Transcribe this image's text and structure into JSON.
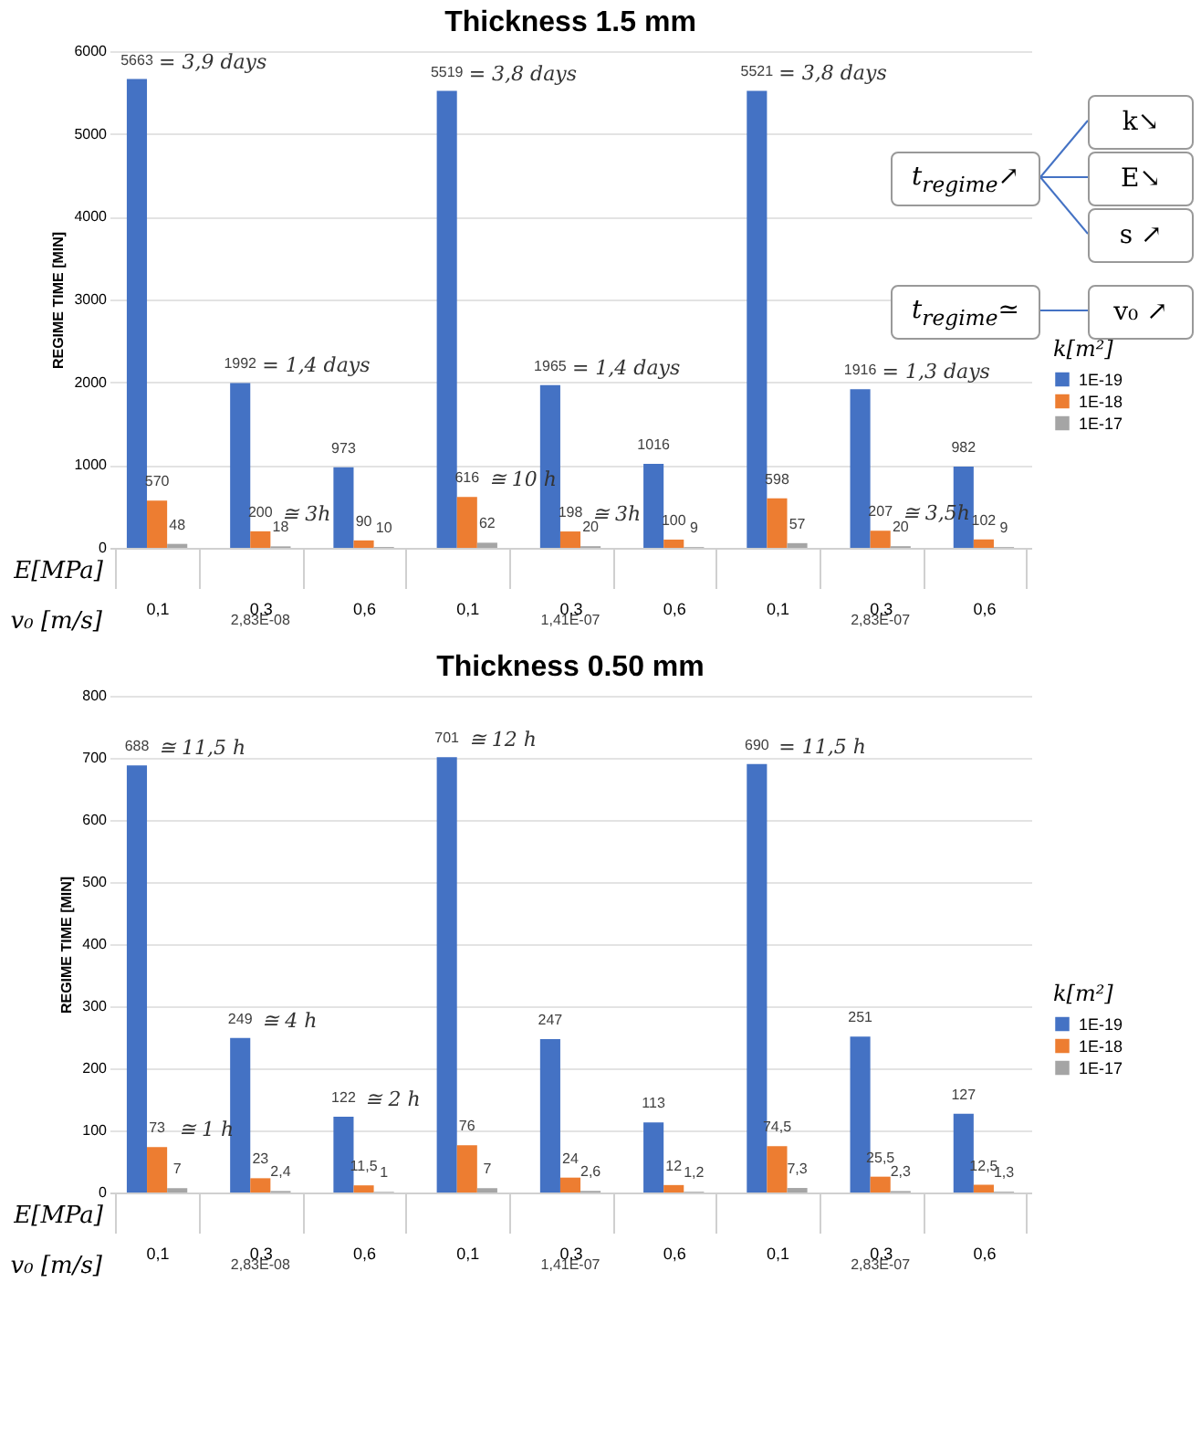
{
  "chart_data": [
    {
      "type": "bar",
      "title": "Thickness 1.5 mm",
      "ylabel": "REGIME TIME [MIN]",
      "xlabel": "E[MPa]",
      "legend_title": "k[m²]",
      "legend": "right",
      "grid": true,
      "categories": [
        "0,1",
        "0,3",
        "0,6",
        "0,1",
        "0,3",
        "0,6",
        "0,1",
        "0,3",
        "0,6"
      ],
      "ylim": [
        0,
        6000
      ],
      "yticks": [
        0,
        1000,
        2000,
        3000,
        4000,
        5000,
        6000
      ],
      "series": [
        {
          "name": "1E-19",
          "color": "#4472c4",
          "values": [
            5663,
            1992,
            973,
            5519,
            1965,
            1016,
            5521,
            1916,
            982
          ],
          "value_labels": [
            "5663",
            "1992",
            "973",
            "5519",
            "1965",
            "1016",
            "5521",
            "1916",
            "982"
          ]
        },
        {
          "name": "1E-18",
          "color": "#ed7d31",
          "values": [
            570,
            200,
            90,
            616,
            198,
            100,
            598,
            207,
            102
          ],
          "value_labels": [
            "570",
            "200",
            "90",
            "616",
            "198",
            "100",
            "598",
            "207",
            "102"
          ]
        },
        {
          "name": "1E-17",
          "color": "#a5a5a5",
          "values": [
            48,
            18,
            10,
            62,
            20,
            9,
            57,
            20,
            9
          ],
          "value_labels": [
            "48",
            "18",
            "10",
            "62",
            "20",
            "9",
            "57",
            "20",
            "9"
          ]
        }
      ],
      "annotations": [
        "v₀ [m/s]",
        "t$_{regime}$↗",
        "k↘",
        "E↘",
        "s ↗",
        "t$_{regime}$≃",
        "v₀ ↗",
        "2,83E-08",
        "1,41E-07",
        "2,83E-07",
        "= 3,9 days",
        "= 1,4 days",
        "≅ 3h",
        "= 3,8 days",
        "≅ 10 h",
        "= 1,4 days",
        "≅ 3h",
        "= 3,8 days",
        "= 1,3 days",
        "≅ 3,5h"
      ]
    },
    {
      "type": "bar",
      "title": "Thickness 0.50 mm",
      "ylabel": "REGIME TIME [MIN]",
      "xlabel": "E[MPa]",
      "legend_title": "k[m²]",
      "legend": "right",
      "grid": true,
      "categories": [
        "0,1",
        "0,3",
        "0,6",
        "0,1",
        "0,3",
        "0,6",
        "0,1",
        "0,3",
        "0,6"
      ],
      "ylim": [
        0,
        800
      ],
      "yticks": [
        0,
        100,
        200,
        300,
        400,
        500,
        600,
        700,
        800
      ],
      "series": [
        {
          "name": "1E-19",
          "color": "#4472c4",
          "values": [
            688,
            249,
            122,
            701,
            247,
            113,
            690,
            251,
            127
          ],
          "value_labels": [
            "688",
            "249",
            "122",
            "701",
            "247",
            "113",
            "690",
            "251",
            "127"
          ]
        },
        {
          "name": "1E-18",
          "color": "#ed7d31",
          "values": [
            73,
            23,
            11.5,
            76,
            24,
            12,
            74.5,
            25.5,
            12.5
          ],
          "value_labels": [
            "73",
            "23",
            "11,5",
            "76",
            "24",
            "12",
            "74,5",
            "25,5",
            "12,5"
          ]
        },
        {
          "name": "1E-17",
          "color": "#a5a5a5",
          "values": [
            7,
            2.4,
            1,
            7,
            2.6,
            1.2,
            7.3,
            2.3,
            1.3
          ],
          "value_labels": [
            "7",
            "2,4",
            "1",
            "7",
            "2,6",
            "1,2",
            "7,3",
            "2,3",
            "1,3"
          ]
        }
      ],
      "annotations": [
        "v₀ [m/s]",
        "2,83E-08",
        "1,41E-07",
        "2,83E-07",
        "≅ 11,5 h",
        "≅ 1 h",
        "≅ 4 h",
        "≅ 2 h",
        "≅ 12 h",
        "= 11,5 h"
      ]
    }
  ]
}
